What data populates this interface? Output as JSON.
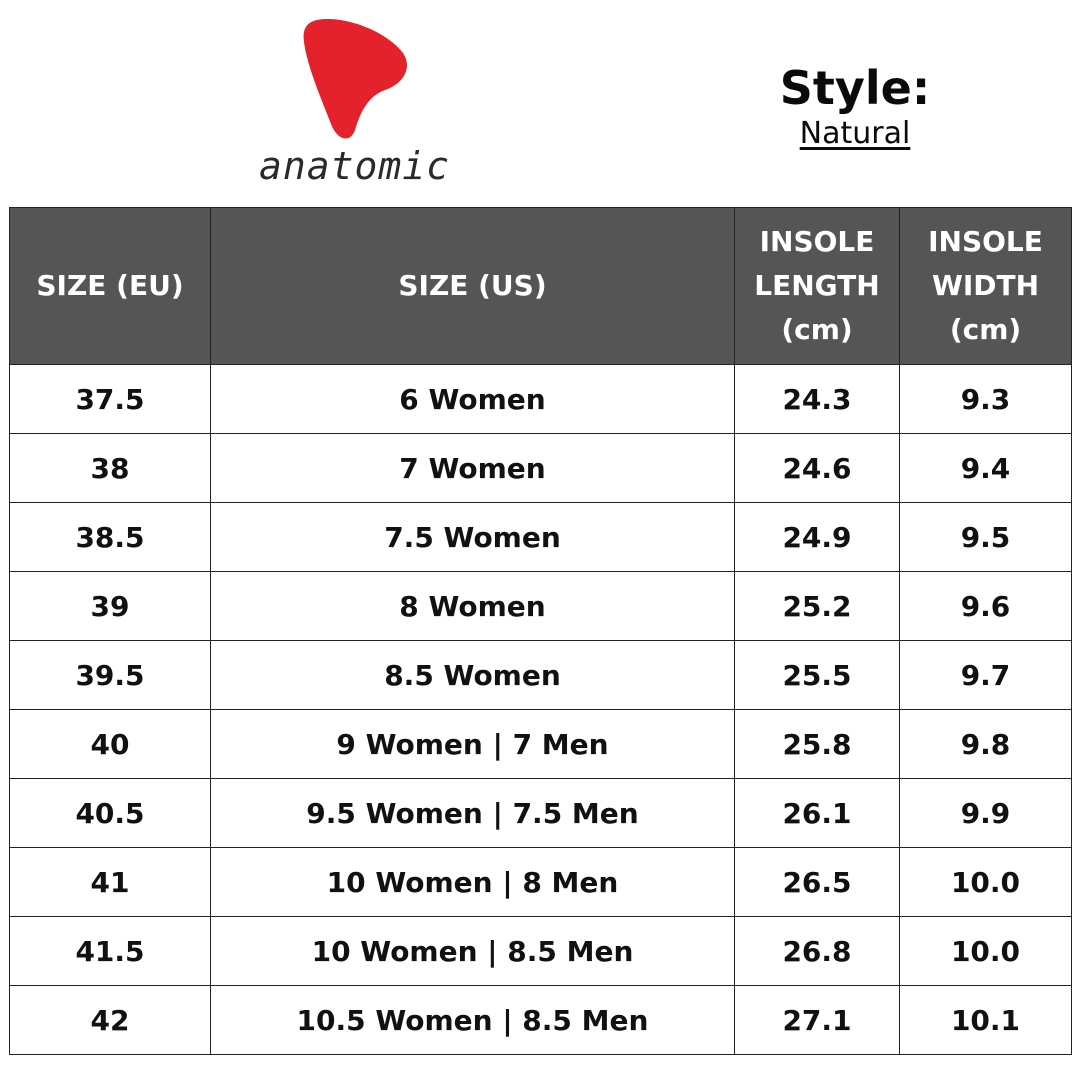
{
  "brand": {
    "name": "anatomic",
    "mark_color": "#e3222b"
  },
  "style": {
    "title": "Style:",
    "value": "Natural"
  },
  "table": {
    "header_bg": "#555555",
    "headers": {
      "size_eu": "SIZE (EU)",
      "size_us": "SIZE (US)",
      "insole_length": [
        "INSOLE",
        "LENGTH",
        "(cm)"
      ],
      "insole_width": [
        "INSOLE",
        "WIDTH",
        "(cm)"
      ]
    },
    "rows": [
      {
        "eu": "37.5",
        "us": "6 Women",
        "length": "24.3",
        "width": "9.3"
      },
      {
        "eu": "38",
        "us": "7 Women",
        "length": "24.6",
        "width": "9.4"
      },
      {
        "eu": "38.5",
        "us": "7.5 Women",
        "length": "24.9",
        "width": "9.5"
      },
      {
        "eu": "39",
        "us": "8 Women",
        "length": "25.2",
        "width": "9.6"
      },
      {
        "eu": "39.5",
        "us": "8.5 Women",
        "length": "25.5",
        "width": "9.7"
      },
      {
        "eu": "40",
        "us": "9 Women | 7 Men",
        "length": "25.8",
        "width": "9.8"
      },
      {
        "eu": "40.5",
        "us": "9.5 Women | 7.5 Men",
        "length": "26.1",
        "width": "9.9"
      },
      {
        "eu": "41",
        "us": "10 Women | 8 Men",
        "length": "26.5",
        "width": "10.0"
      },
      {
        "eu": "41.5",
        "us": "10 Women | 8.5 Men",
        "length": "26.8",
        "width": "10.0"
      },
      {
        "eu": "42",
        "us": "10.5 Women | 8.5 Men",
        "length": "27.1",
        "width": "10.1"
      }
    ]
  }
}
